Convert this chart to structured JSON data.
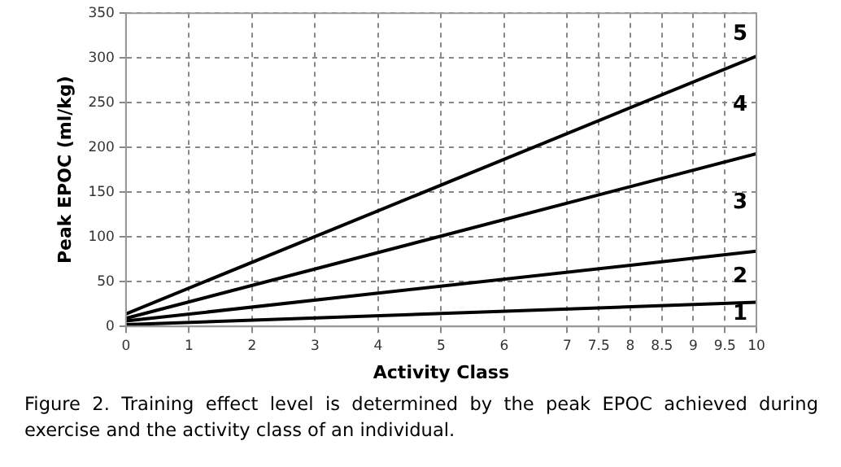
{
  "chart_data": {
    "type": "line",
    "xlabel": "Activity Class",
    "ylabel": "Peak EPOC (ml/kg)",
    "x": [
      0,
      10
    ],
    "series": [
      {
        "color": "#000000",
        "values": [
          2,
          27
        ]
      },
      {
        "color": "#000000",
        "values": [
          6,
          84
        ]
      },
      {
        "color": "#000000",
        "values": [
          9,
          193
        ]
      },
      {
        "color": "#000000",
        "values": [
          14,
          302
        ]
      }
    ],
    "xlim": [
      0,
      10
    ],
    "xticks": [
      0,
      1,
      2,
      3,
      4,
      5,
      6,
      7,
      7.5,
      8,
      8.5,
      9,
      9.5,
      10
    ],
    "ylim": [
      0,
      350
    ],
    "yticks": [
      0,
      50,
      100,
      150,
      200,
      250,
      300,
      350
    ],
    "grid": true,
    "legend": false,
    "marker": "none",
    "line_style": "solid",
    "annotations": [
      "5",
      "4",
      "3",
      "2",
      "1",
      "Figure 2. Training effect level is determined by the peak EPOC achieved during exercise and the activity class of an individual."
    ]
  }
}
